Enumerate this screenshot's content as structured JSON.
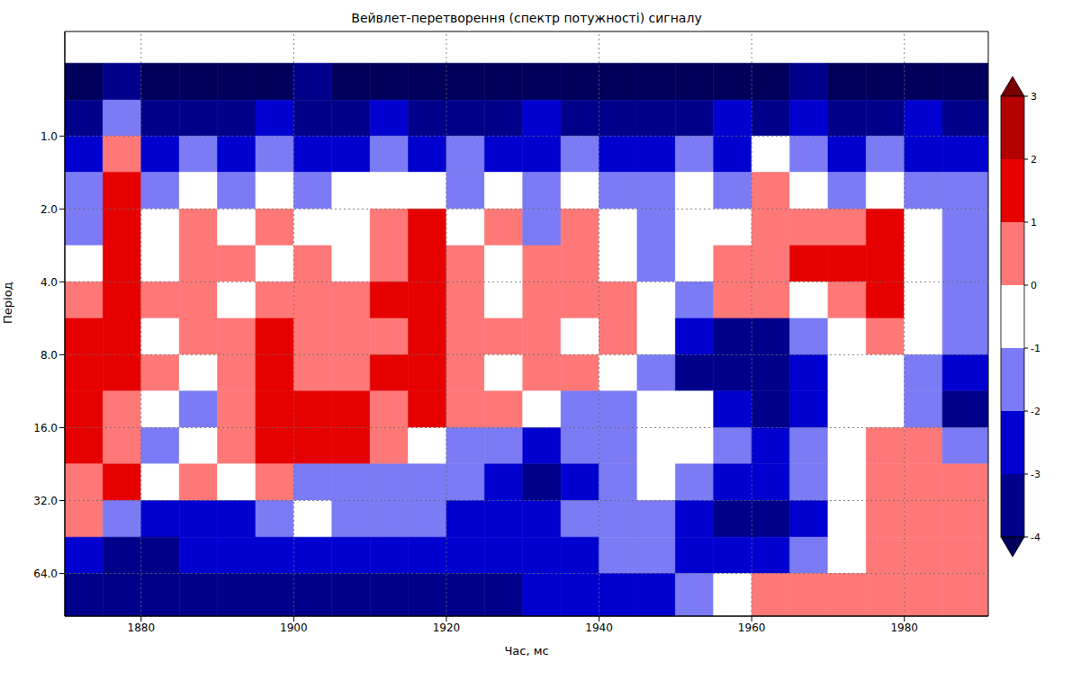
{
  "chart_data": {
    "type": "heatmap",
    "title": "Вейвлет-перетворення (спектр потужності) сигналу",
    "x_label": "Час, мс",
    "y_label": "Період",
    "log": "y",
    "grid": true,
    "xlim": [
      1870,
      1991
    ],
    "ylim": [
      0.37,
      96
    ],
    "xticks": [
      1880,
      1900,
      1920,
      1940,
      1960,
      1980
    ],
    "yticks": [
      {
        "value": 1,
        "label": "1.0"
      },
      {
        "value": 2,
        "label": "2.0"
      },
      {
        "value": 4,
        "label": "4.0"
      },
      {
        "value": 8,
        "label": "8.0"
      },
      {
        "value": 16,
        "label": "16.0"
      },
      {
        "value": 32,
        "label": "32.0"
      },
      {
        "value": 64,
        "label": "64.0"
      }
    ],
    "x_edges": [
      1870,
      1875,
      1880,
      1885,
      1890,
      1895,
      1900,
      1905,
      1910,
      1915,
      1920,
      1925,
      1930,
      1935,
      1940,
      1945,
      1950,
      1955,
      1960,
      1965,
      1970,
      1975,
      1980,
      1985,
      1991
    ],
    "y_edges": [
      0.5,
      0.71,
      1,
      1.41,
      2,
      2.83,
      4,
      5.66,
      8,
      11.3,
      16,
      22.6,
      32,
      45.3,
      64,
      96
    ],
    "cells": [
      [
        -4.5,
        -3.5,
        -4.5,
        -4.5,
        -4.5,
        -4.5,
        -3.5,
        -4.5,
        -4.5,
        -4.5,
        -4.5,
        -4.5,
        -4.5,
        -4.5,
        -4.5,
        -4.5,
        -4.5,
        -4.5,
        -4.5,
        -3.5,
        -4.5,
        -4.5,
        -4.5,
        -4.5
      ],
      [
        -3.5,
        -1.5,
        -3.5,
        -3.5,
        -3.5,
        -2.5,
        -3.5,
        -3.5,
        -2.5,
        -3.5,
        -3.5,
        -3.5,
        -2.5,
        -3.5,
        -3.5,
        -3.5,
        -3.5,
        -2.5,
        -3.5,
        -2.5,
        -3.5,
        -3.5,
        -2.5,
        -3.5
      ],
      [
        -2.5,
        0.5,
        -2.5,
        -1.5,
        -2.5,
        -1.5,
        -2.5,
        -2.5,
        -1.5,
        -2.5,
        -1.5,
        -2.5,
        -2.5,
        -1.5,
        -2.5,
        -2.5,
        -1.5,
        -2.5,
        -0.5,
        -1.5,
        -2.5,
        -1.5,
        -2.5,
        -2.5
      ],
      [
        -1.5,
        1.5,
        -1.5,
        -0.5,
        -1.5,
        -0.5,
        -1.5,
        -0.5,
        -0.5,
        -0.5,
        -1.5,
        -0.5,
        -1.5,
        -0.5,
        -1.5,
        -1.5,
        -0.5,
        -1.5,
        0.5,
        -0.5,
        -1.5,
        -0.5,
        -1.5,
        -1.5
      ],
      [
        -1.5,
        1.5,
        -0.5,
        0.5,
        -0.5,
        0.5,
        -0.5,
        -0.5,
        0.5,
        1.5,
        -0.5,
        0.5,
        -1.5,
        0.5,
        -0.5,
        -1.5,
        -0.5,
        -0.5,
        0.5,
        0.5,
        0.5,
        1.5,
        -0.5,
        -1.5
      ],
      [
        -0.5,
        1.5,
        -0.5,
        0.5,
        0.5,
        -0.5,
        0.5,
        -0.5,
        0.5,
        1.5,
        0.5,
        -0.5,
        0.5,
        0.5,
        -0.5,
        -1.5,
        -0.5,
        0.5,
        0.5,
        1.5,
        1.5,
        1.5,
        -0.5,
        -1.5
      ],
      [
        0.5,
        1.5,
        0.5,
        0.5,
        -0.5,
        0.5,
        0.5,
        0.5,
        1.5,
        1.5,
        0.5,
        -0.5,
        0.5,
        0.5,
        0.5,
        -0.5,
        -1.5,
        0.5,
        0.5,
        -0.5,
        0.5,
        1.5,
        -0.5,
        -1.5
      ],
      [
        1.5,
        1.5,
        -0.5,
        0.5,
        0.5,
        1.5,
        0.5,
        0.5,
        0.5,
        1.5,
        0.5,
        0.5,
        0.5,
        -0.5,
        0.5,
        -0.5,
        -2.5,
        -3.5,
        -3.5,
        -1.5,
        -0.5,
        0.5,
        -0.5,
        -1.5
      ],
      [
        1.5,
        1.5,
        0.5,
        -0.5,
        0.5,
        1.5,
        0.5,
        0.5,
        1.5,
        1.5,
        0.5,
        -0.5,
        0.5,
        0.5,
        -0.5,
        -1.5,
        -3.5,
        -3.5,
        -3.5,
        -2.5,
        -0.5,
        -0.5,
        -1.5,
        -2.5
      ],
      [
        1.5,
        0.5,
        -0.5,
        -1.5,
        0.5,
        1.5,
        1.5,
        1.5,
        0.5,
        1.5,
        0.5,
        0.5,
        -0.5,
        -1.5,
        -1.5,
        -0.5,
        -0.5,
        -2.5,
        -3.5,
        -2.5,
        -0.5,
        -0.5,
        -1.5,
        -3.5
      ],
      [
        1.5,
        0.5,
        -1.5,
        -0.5,
        0.5,
        1.5,
        1.5,
        1.5,
        0.5,
        -0.5,
        -1.5,
        -1.5,
        -2.5,
        -1.5,
        -1.5,
        -0.5,
        -0.5,
        -1.5,
        -2.5,
        -1.5,
        -0.5,
        0.5,
        0.5,
        -1.5
      ],
      [
        0.5,
        1.5,
        -0.5,
        0.5,
        -0.5,
        0.5,
        -1.5,
        -1.5,
        -1.5,
        -1.5,
        -1.5,
        -2.5,
        -3.5,
        -2.5,
        -1.5,
        -0.5,
        -1.5,
        -2.5,
        -2.5,
        -1.5,
        -0.5,
        0.5,
        0.5,
        0.5
      ],
      [
        0.5,
        -1.5,
        -2.5,
        -2.5,
        -2.5,
        -1.5,
        -0.5,
        -1.5,
        -1.5,
        -1.5,
        -2.5,
        -2.5,
        -2.5,
        -1.5,
        -1.5,
        -1.5,
        -2.5,
        -3.5,
        -3.5,
        -2.5,
        -0.5,
        0.5,
        0.5,
        0.5
      ],
      [
        -2.5,
        -3.5,
        -3.5,
        -2.5,
        -2.5,
        -2.5,
        -2.5,
        -2.5,
        -2.5,
        -2.5,
        -2.5,
        -2.5,
        -2.5,
        -2.5,
        -1.5,
        -1.5,
        -2.5,
        -2.5,
        -2.5,
        -1.5,
        -0.5,
        0.5,
        0.5,
        0.5
      ],
      [
        -3.5,
        -3.5,
        -3.5,
        -3.5,
        -3.5,
        -3.5,
        -3.5,
        -3.5,
        -3.5,
        -3.5,
        -3.5,
        -3.5,
        -2.5,
        -2.5,
        -2.5,
        -2.5,
        -1.5,
        -0.5,
        0.5,
        0.5,
        0.5,
        0.5,
        0.5,
        0.5
      ]
    ],
    "colorbar": {
      "ticks": [
        -4,
        -3,
        -2,
        -1,
        0,
        1,
        2,
        3
      ],
      "levels": [
        -4,
        -3,
        -2,
        -1,
        0,
        1,
        2,
        3
      ],
      "colors": [
        "#00005c",
        "#00008a",
        "#0000d0",
        "#7b7bf5",
        "#ffffff",
        "#ff7878",
        "#e60000",
        "#b30000",
        "#7a0000"
      ]
    }
  }
}
